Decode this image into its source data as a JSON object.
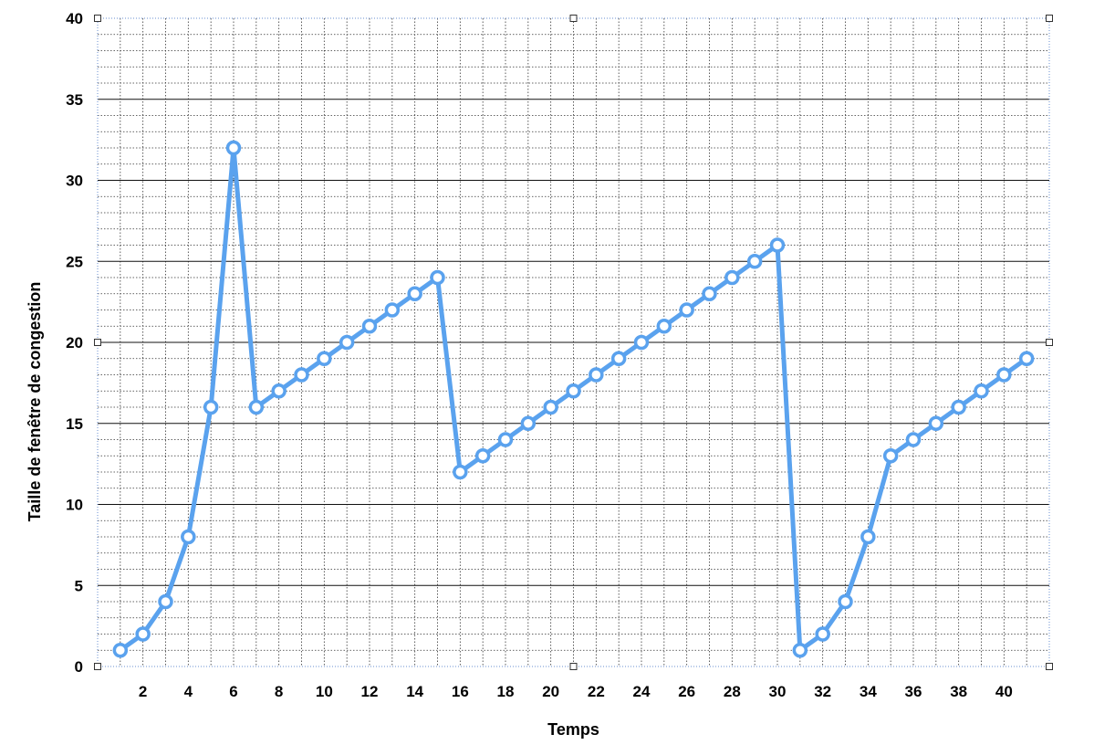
{
  "chart_data": {
    "type": "line",
    "title": "",
    "xlabel": "Temps",
    "ylabel": "Taille de fenêtre de congestion",
    "xlim": [
      0,
      42
    ],
    "ylim": [
      0,
      40
    ],
    "x_ticks": [
      2,
      4,
      6,
      8,
      10,
      12,
      14,
      16,
      18,
      20,
      22,
      24,
      26,
      28,
      30,
      32,
      34,
      36,
      38,
      40
    ],
    "y_ticks": [
      0,
      5,
      10,
      15,
      20,
      25,
      30,
      35,
      40
    ],
    "grid": true,
    "legend": "none",
    "line_color": "#5aa2ee",
    "series": [
      {
        "x": [
          1,
          2,
          3,
          4,
          5,
          6,
          7,
          8,
          9,
          10,
          11,
          12,
          13,
          14,
          15,
          16,
          17,
          18,
          19,
          20,
          21,
          22,
          23,
          24,
          25,
          26,
          27,
          28,
          29,
          30,
          31,
          32,
          33,
          34,
          35,
          36,
          37,
          38,
          39,
          40,
          41
        ],
        "values": [
          1,
          2,
          4,
          8,
          16,
          32,
          16,
          17,
          18,
          19,
          20,
          21,
          22,
          23,
          24,
          12,
          13,
          14,
          15,
          16,
          17,
          18,
          19,
          20,
          21,
          22,
          23,
          24,
          25,
          26,
          1,
          2,
          4,
          8,
          13,
          14,
          15,
          16,
          17,
          18,
          19
        ]
      }
    ]
  }
}
